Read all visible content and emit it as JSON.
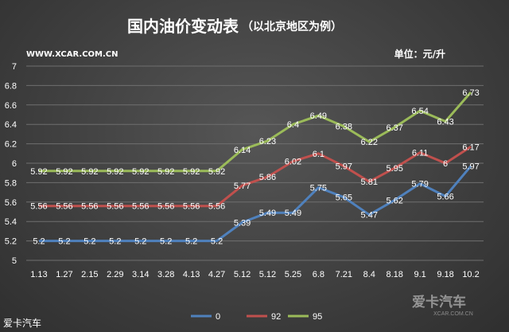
{
  "header": {
    "title": "国内油价变动表",
    "subtitle": "（以北京地区为例）",
    "source": "WWW.XCAR.COM.CN",
    "unit": "单位：元/升"
  },
  "footer": {
    "left_text": "爱卡汽车",
    "logo_text": "爱卡汽车",
    "logo_sub": "XCAR.COM.CN"
  },
  "colors": {
    "series_0": "#4f81bd",
    "series_92": "#c0504d",
    "series_95": "#9bbb59"
  },
  "chart_data": {
    "type": "line",
    "categories": [
      "1.13",
      "1.27",
      "2.15",
      "2.29",
      "3.14",
      "3.28",
      "4.13",
      "4.27",
      "5.12",
      "5.12",
      "5.25",
      "6.8",
      "7.21",
      "8.4",
      "8.18",
      "9.1",
      "9.18",
      "10.2"
    ],
    "series": [
      {
        "name": "0",
        "values": [
          5.2,
          5.2,
          5.2,
          5.2,
          5.2,
          5.2,
          5.2,
          5.2,
          5.39,
          5.49,
          5.49,
          5.75,
          5.65,
          5.47,
          5.62,
          5.79,
          5.66,
          5.97
        ]
      },
      {
        "name": "92",
        "values": [
          5.56,
          5.56,
          5.56,
          5.56,
          5.56,
          5.56,
          5.56,
          5.56,
          5.77,
          5.86,
          6.02,
          6.1,
          5.97,
          5.81,
          5.95,
          6.11,
          6,
          6.17
        ]
      },
      {
        "name": "95",
        "values": [
          5.92,
          5.92,
          5.92,
          5.92,
          5.92,
          5.92,
          5.92,
          5.92,
          6.14,
          6.23,
          6.4,
          6.49,
          6.38,
          6.22,
          6.37,
          6.54,
          6.43,
          6.73
        ]
      }
    ],
    "ylim": [
      5,
      7
    ],
    "yticks": [
      "5",
      "5.2",
      "5.4",
      "5.6",
      "5.8",
      "6",
      "6.2",
      "6.4",
      "6.6",
      "6.8",
      "7"
    ],
    "legend": "bottom",
    "grid": true
  }
}
